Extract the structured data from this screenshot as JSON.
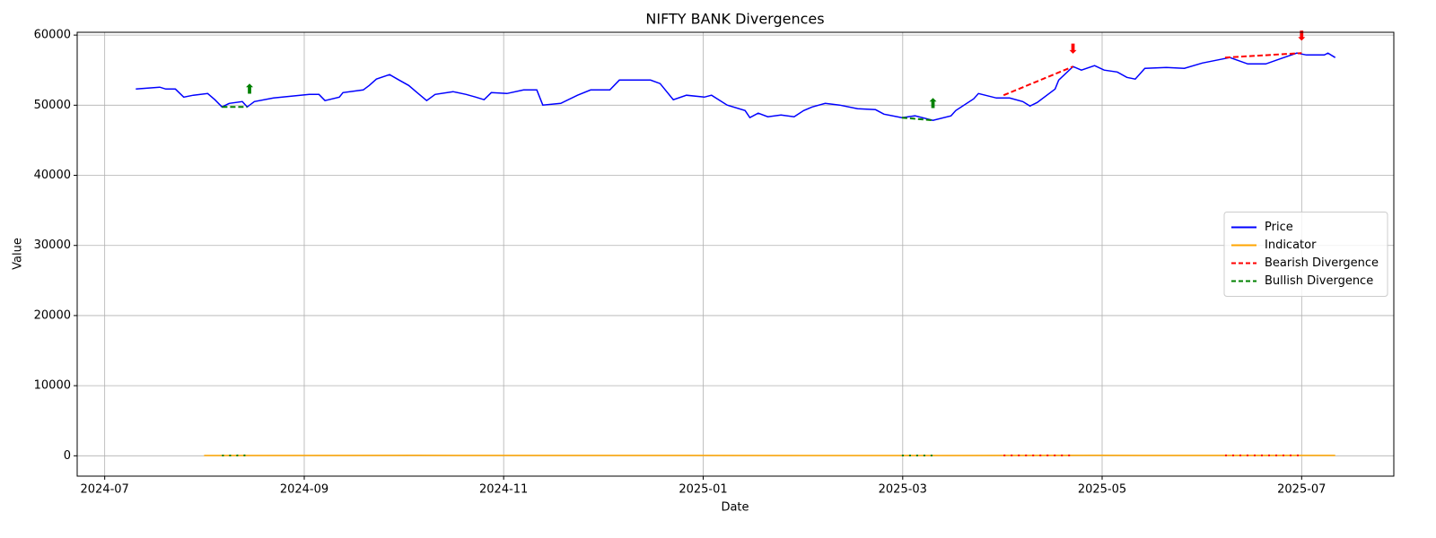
{
  "chart_data": {
    "type": "line",
    "title": "NIFTY BANK Divergences",
    "x_label": "Date",
    "y_label": "Value",
    "xlim": [
      2024.477,
      2025.577
    ],
    "xticks": [
      {
        "value": 2024.5,
        "label": "2024-07"
      },
      {
        "value": 2024.6667,
        "label": "2024-09"
      },
      {
        "value": 2024.8333,
        "label": "2024-11"
      },
      {
        "value": 2025.0,
        "label": "2025-01"
      },
      {
        "value": 2025.1667,
        "label": "2025-03"
      },
      {
        "value": 2025.3333,
        "label": "2025-05"
      },
      {
        "value": 2025.5,
        "label": "2025-07"
      }
    ],
    "ylim": [
      -2900,
      60400
    ],
    "yticks": [
      0,
      10000,
      20000,
      30000,
      40000,
      50000,
      60000
    ],
    "grid": true,
    "legend_loc": "center right",
    "series": [
      {
        "name": "Price",
        "color": "#0000ff",
        "style": "solid",
        "x": [
          2024.526,
          2024.536,
          2024.546,
          2024.551,
          2024.559,
          2024.566,
          2024.574,
          2024.586,
          2024.592,
          2024.598,
          2024.604,
          2024.615,
          2024.619,
          2024.625,
          2024.641,
          2024.656,
          2024.671,
          2024.679,
          2024.684,
          2024.696,
          2024.699,
          2024.716,
          2024.721,
          2024.727,
          2024.738,
          2024.746,
          2024.754,
          2024.761,
          2024.769,
          2024.776,
          2024.791,
          2024.802,
          2024.81,
          2024.817,
          2024.823,
          2024.836,
          2024.85,
          2024.861,
          2024.866,
          2024.881,
          2024.895,
          2024.906,
          2024.922,
          2024.93,
          2024.943,
          2024.956,
          2024.964,
          2024.975,
          2024.986,
          2025.001,
          2025.007,
          2025.02,
          2025.035,
          2025.039,
          2025.046,
          2025.054,
          2025.065,
          2025.076,
          2025.084,
          2025.091,
          2025.102,
          2025.114,
          2025.129,
          2025.144,
          2025.151,
          2025.166,
          2025.177,
          2025.192,
          2025.207,
          2025.211,
          2025.226,
          2025.23,
          2025.245,
          2025.256,
          2025.267,
          2025.273,
          2025.279,
          2025.294,
          2025.297,
          2025.309,
          2025.316,
          2025.327,
          2025.335,
          2025.346,
          2025.354,
          2025.361,
          2025.369,
          2025.387,
          2025.402,
          2025.417,
          2025.432,
          2025.44,
          2025.455,
          2025.47,
          2025.483,
          2025.496,
          2025.504,
          2025.519,
          2025.522,
          2025.528
        ],
        "values": [
          52300,
          52430,
          52570,
          52310,
          52310,
          51160,
          51420,
          51670,
          50780,
          49750,
          50260,
          50520,
          49750,
          50520,
          51030,
          51290,
          51540,
          51540,
          50650,
          51160,
          51800,
          52180,
          52820,
          53720,
          54360,
          53590,
          52820,
          51800,
          50650,
          51540,
          51930,
          51540,
          51160,
          50780,
          51800,
          51670,
          52180,
          52180,
          50010,
          50260,
          51420,
          52180,
          52180,
          53590,
          53590,
          53590,
          53080,
          50780,
          51420,
          51160,
          51420,
          50010,
          49240,
          48220,
          48860,
          48350,
          48610,
          48350,
          49240,
          49750,
          50260,
          50010,
          49500,
          49370,
          48730,
          48220,
          48480,
          47840,
          48480,
          49240,
          50910,
          51670,
          51030,
          51030,
          50520,
          49880,
          50390,
          52310,
          53590,
          55510,
          55000,
          55640,
          55000,
          54740,
          53970,
          53720,
          55260,
          55380,
          55260,
          56020,
          56530,
          56790,
          55890,
          55890,
          56660,
          57430,
          57170,
          57170,
          57430,
          56790
        ]
      },
      {
        "name": "Indicator",
        "color": "#ffa500",
        "style": "solid",
        "x": [
          2024.583,
          2024.7,
          2024.76,
          2024.85,
          2024.95,
          2025.1,
          2025.2,
          2025.25,
          2025.33,
          2025.4,
          2025.47,
          2025.528
        ],
        "values": [
          45,
          60,
          70,
          50,
          55,
          40,
          35,
          60,
          65,
          50,
          55,
          50
        ]
      },
      {
        "name": "Bearish Divergence",
        "color": "#ff0000",
        "style": "dashed",
        "x": [
          2025.251,
          2025.309,
          null,
          2025.436,
          2025.5
        ],
        "values": [
          51420,
          55510,
          null,
          56790,
          57430
        ],
        "indicator_values": [
          55,
          60,
          null,
          50,
          55
        ]
      },
      {
        "name": "Bullish Divergence",
        "color": "#008000",
        "style": "dashed",
        "x": [
          2024.598,
          2024.619,
          null,
          2025.166,
          2025.192
        ],
        "values": [
          49750,
          49750,
          null,
          48220,
          47840
        ],
        "indicator_values": [
          45,
          50,
          null,
          40,
          45
        ]
      }
    ],
    "annotations": [
      {
        "text": "⬆",
        "x": 2024.621,
        "y": 52200,
        "color": "#008000"
      },
      {
        "text": "⬆",
        "x": 2025.192,
        "y": 50200,
        "color": "#008000"
      },
      {
        "text": "⬇",
        "x": 2025.309,
        "y": 58000,
        "color": "#ff0000"
      },
      {
        "text": "⬇",
        "x": 2025.5,
        "y": 59800,
        "color": "#ff0000"
      }
    ]
  }
}
